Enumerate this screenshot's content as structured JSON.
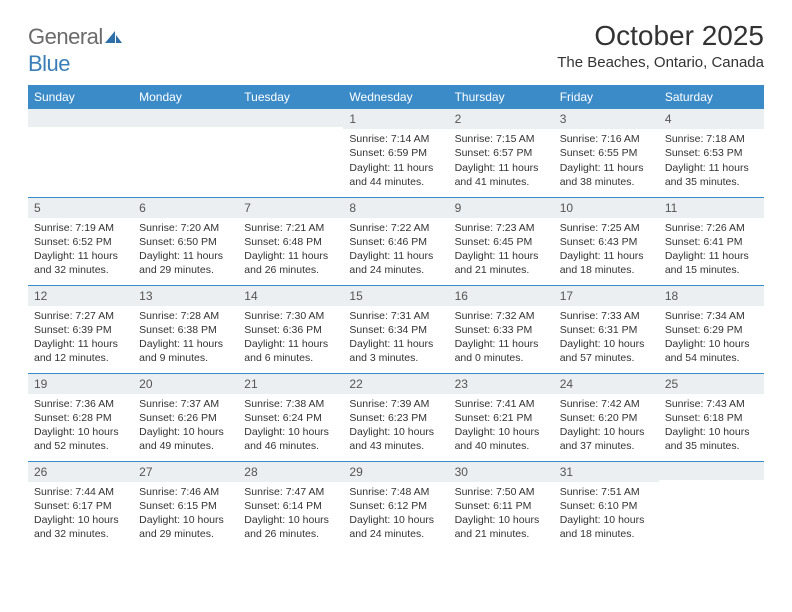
{
  "brand": {
    "name_gray": "General",
    "name_blue": "Blue"
  },
  "title": "October 2025",
  "location": "The Beaches, Ontario, Canada",
  "colors": {
    "header_bg": "#3b8bc9",
    "header_text": "#ffffff",
    "daynum_bg": "#eceff2",
    "row_border": "#3b8bc9",
    "text": "#333333",
    "logo_gray": "#6b6b6b",
    "logo_blue": "#3b7fb8",
    "page_bg": "#ffffff"
  },
  "dayHeaders": [
    "Sunday",
    "Monday",
    "Tuesday",
    "Wednesday",
    "Thursday",
    "Friday",
    "Saturday"
  ],
  "weeks": [
    [
      {
        "n": "",
        "sr": "",
        "ss": "",
        "dl": ""
      },
      {
        "n": "",
        "sr": "",
        "ss": "",
        "dl": ""
      },
      {
        "n": "",
        "sr": "",
        "ss": "",
        "dl": ""
      },
      {
        "n": "1",
        "sr": "7:14 AM",
        "ss": "6:59 PM",
        "dl": "11 hours and 44 minutes."
      },
      {
        "n": "2",
        "sr": "7:15 AM",
        "ss": "6:57 PM",
        "dl": "11 hours and 41 minutes."
      },
      {
        "n": "3",
        "sr": "7:16 AM",
        "ss": "6:55 PM",
        "dl": "11 hours and 38 minutes."
      },
      {
        "n": "4",
        "sr": "7:18 AM",
        "ss": "6:53 PM",
        "dl": "11 hours and 35 minutes."
      }
    ],
    [
      {
        "n": "5",
        "sr": "7:19 AM",
        "ss": "6:52 PM",
        "dl": "11 hours and 32 minutes."
      },
      {
        "n": "6",
        "sr": "7:20 AM",
        "ss": "6:50 PM",
        "dl": "11 hours and 29 minutes."
      },
      {
        "n": "7",
        "sr": "7:21 AM",
        "ss": "6:48 PM",
        "dl": "11 hours and 26 minutes."
      },
      {
        "n": "8",
        "sr": "7:22 AM",
        "ss": "6:46 PM",
        "dl": "11 hours and 24 minutes."
      },
      {
        "n": "9",
        "sr": "7:23 AM",
        "ss": "6:45 PM",
        "dl": "11 hours and 21 minutes."
      },
      {
        "n": "10",
        "sr": "7:25 AM",
        "ss": "6:43 PM",
        "dl": "11 hours and 18 minutes."
      },
      {
        "n": "11",
        "sr": "7:26 AM",
        "ss": "6:41 PM",
        "dl": "11 hours and 15 minutes."
      }
    ],
    [
      {
        "n": "12",
        "sr": "7:27 AM",
        "ss": "6:39 PM",
        "dl": "11 hours and 12 minutes."
      },
      {
        "n": "13",
        "sr": "7:28 AM",
        "ss": "6:38 PM",
        "dl": "11 hours and 9 minutes."
      },
      {
        "n": "14",
        "sr": "7:30 AM",
        "ss": "6:36 PM",
        "dl": "11 hours and 6 minutes."
      },
      {
        "n": "15",
        "sr": "7:31 AM",
        "ss": "6:34 PM",
        "dl": "11 hours and 3 minutes."
      },
      {
        "n": "16",
        "sr": "7:32 AM",
        "ss": "6:33 PM",
        "dl": "11 hours and 0 minutes."
      },
      {
        "n": "17",
        "sr": "7:33 AM",
        "ss": "6:31 PM",
        "dl": "10 hours and 57 minutes."
      },
      {
        "n": "18",
        "sr": "7:34 AM",
        "ss": "6:29 PM",
        "dl": "10 hours and 54 minutes."
      }
    ],
    [
      {
        "n": "19",
        "sr": "7:36 AM",
        "ss": "6:28 PM",
        "dl": "10 hours and 52 minutes."
      },
      {
        "n": "20",
        "sr": "7:37 AM",
        "ss": "6:26 PM",
        "dl": "10 hours and 49 minutes."
      },
      {
        "n": "21",
        "sr": "7:38 AM",
        "ss": "6:24 PM",
        "dl": "10 hours and 46 minutes."
      },
      {
        "n": "22",
        "sr": "7:39 AM",
        "ss": "6:23 PM",
        "dl": "10 hours and 43 minutes."
      },
      {
        "n": "23",
        "sr": "7:41 AM",
        "ss": "6:21 PM",
        "dl": "10 hours and 40 minutes."
      },
      {
        "n": "24",
        "sr": "7:42 AM",
        "ss": "6:20 PM",
        "dl": "10 hours and 37 minutes."
      },
      {
        "n": "25",
        "sr": "7:43 AM",
        "ss": "6:18 PM",
        "dl": "10 hours and 35 minutes."
      }
    ],
    [
      {
        "n": "26",
        "sr": "7:44 AM",
        "ss": "6:17 PM",
        "dl": "10 hours and 32 minutes."
      },
      {
        "n": "27",
        "sr": "7:46 AM",
        "ss": "6:15 PM",
        "dl": "10 hours and 29 minutes."
      },
      {
        "n": "28",
        "sr": "7:47 AM",
        "ss": "6:14 PM",
        "dl": "10 hours and 26 minutes."
      },
      {
        "n": "29",
        "sr": "7:48 AM",
        "ss": "6:12 PM",
        "dl": "10 hours and 24 minutes."
      },
      {
        "n": "30",
        "sr": "7:50 AM",
        "ss": "6:11 PM",
        "dl": "10 hours and 21 minutes."
      },
      {
        "n": "31",
        "sr": "7:51 AM",
        "ss": "6:10 PM",
        "dl": "10 hours and 18 minutes."
      },
      {
        "n": "",
        "sr": "",
        "ss": "",
        "dl": ""
      }
    ]
  ],
  "labels": {
    "sunrise": "Sunrise:",
    "sunset": "Sunset:",
    "daylight": "Daylight:"
  }
}
